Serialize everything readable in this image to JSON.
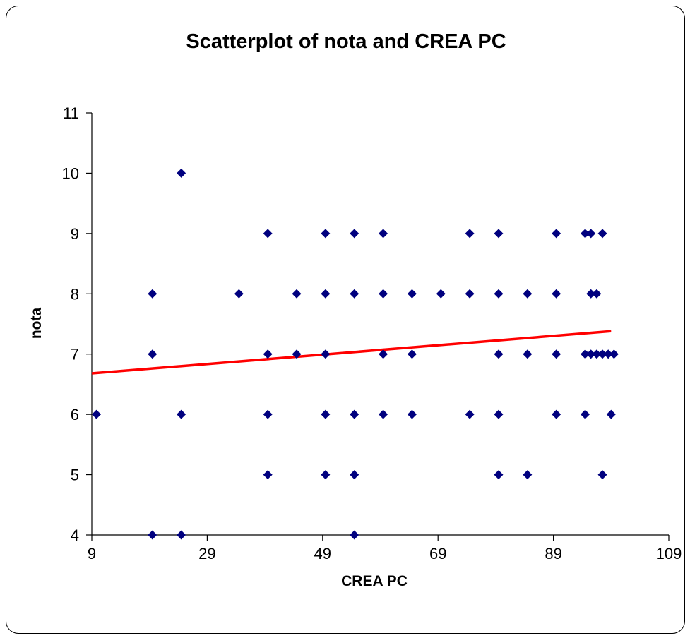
{
  "chart_data": {
    "type": "scatter",
    "title": "Scatterplot of nota  and CREA PC",
    "xlabel": "CREA PC",
    "ylabel": "nota",
    "xlim": [
      9,
      109
    ],
    "ylim": [
      4,
      11
    ],
    "xticks": [
      "9",
      "29",
      "49",
      "69",
      "89",
      "109"
    ],
    "yticks": [
      "4",
      "5",
      "6",
      "7",
      "8",
      "9",
      "10",
      "11"
    ],
    "grid": false,
    "legend": "none",
    "colors": {
      "points": "#00007f",
      "trendline": "#ff0000",
      "axis": "#000000"
    },
    "series": [
      {
        "marker": "diamond",
        "points": [
          [
            9.8,
            6
          ],
          [
            19.5,
            4
          ],
          [
            19.5,
            7
          ],
          [
            19.5,
            8
          ],
          [
            24.5,
            4
          ],
          [
            24.5,
            6
          ],
          [
            24.5,
            10
          ],
          [
            34.5,
            8
          ],
          [
            39.5,
            5
          ],
          [
            39.5,
            6
          ],
          [
            39.5,
            7
          ],
          [
            39.5,
            9
          ],
          [
            44.5,
            7
          ],
          [
            44.5,
            8
          ],
          [
            49.5,
            5
          ],
          [
            49.5,
            6
          ],
          [
            49.5,
            7
          ],
          [
            49.5,
            8
          ],
          [
            49.5,
            9
          ],
          [
            54.5,
            4
          ],
          [
            54.5,
            5
          ],
          [
            54.5,
            6
          ],
          [
            54.5,
            8
          ],
          [
            54.5,
            9
          ],
          [
            59.5,
            6
          ],
          [
            59.5,
            7
          ],
          [
            59.5,
            8
          ],
          [
            59.5,
            9
          ],
          [
            64.5,
            6
          ],
          [
            64.5,
            7
          ],
          [
            64.5,
            8
          ],
          [
            69.5,
            8
          ],
          [
            74.5,
            6
          ],
          [
            74.5,
            8
          ],
          [
            74.5,
            9
          ],
          [
            79.5,
            5
          ],
          [
            79.5,
            6
          ],
          [
            79.5,
            7
          ],
          [
            79.5,
            8
          ],
          [
            79.5,
            9
          ],
          [
            84.5,
            5
          ],
          [
            84.5,
            7
          ],
          [
            84.5,
            8
          ],
          [
            89.5,
            6
          ],
          [
            89.5,
            7
          ],
          [
            89.5,
            8
          ],
          [
            89.5,
            9
          ],
          [
            94.5,
            6
          ],
          [
            94.5,
            7
          ],
          [
            94.5,
            9
          ],
          [
            95.5,
            7
          ],
          [
            95.5,
            8
          ],
          [
            95.5,
            9
          ],
          [
            96.5,
            7
          ],
          [
            96.5,
            8
          ],
          [
            97.5,
            5
          ],
          [
            97.5,
            7
          ],
          [
            97.5,
            9
          ],
          [
            98.5,
            7
          ],
          [
            99.0,
            6
          ],
          [
            99.5,
            7
          ]
        ]
      }
    ],
    "trendline": {
      "x": [
        9,
        99
      ],
      "y": [
        6.68,
        7.38
      ]
    }
  }
}
